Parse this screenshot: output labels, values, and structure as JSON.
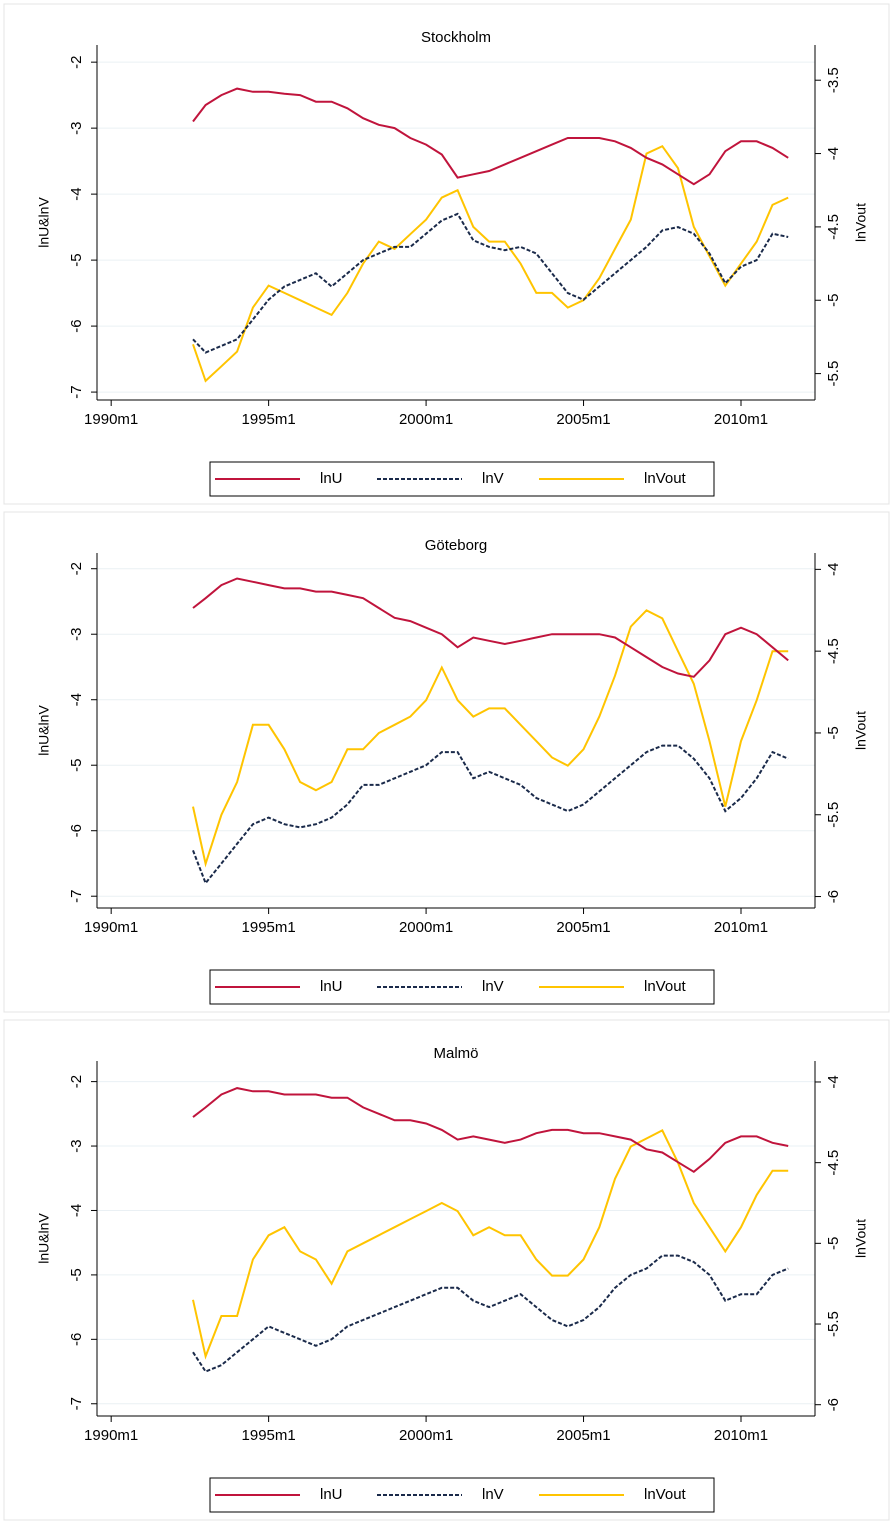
{
  "chart_data": [
    {
      "type": "line",
      "title": "Stockholm",
      "ylabel": "lnU&lnV",
      "y2label": "lnVout",
      "x": [
        1992.6,
        1993,
        1993.5,
        1994,
        1994.5,
        1995,
        1995.5,
        1996,
        1996.5,
        1997,
        1997.5,
        1998,
        1998.5,
        1999,
        1999.5,
        2000,
        2000.5,
        2001,
        2001.5,
        2002,
        2002.5,
        2003,
        2003.5,
        2004,
        2004.5,
        2005,
        2005.5,
        2006,
        2006.5,
        2007,
        2007.5,
        2008,
        2008.5,
        2009,
        2009.5,
        2010,
        2010.5,
        2011,
        2011.5
      ],
      "xlim": [
        1989.55,
        2012.35
      ],
      "xticks": [
        {
          "value": 1990,
          "label": "1990m1"
        },
        {
          "value": 1995,
          "label": "1995m1"
        },
        {
          "value": 2000,
          "label": "2000m1"
        },
        {
          "value": 2005,
          "label": "2005m1"
        },
        {
          "value": 2010,
          "label": "2010m1"
        }
      ],
      "ylim": [
        -7.12,
        -1.74
      ],
      "yticks": [
        -2,
        -3,
        -4,
        -5,
        -6,
        -7
      ],
      "y2lim": [
        -5.68,
        -3.26
      ],
      "y2ticks": [
        -3.5,
        -4,
        -4.5,
        -5,
        -5.5
      ],
      "grid": true,
      "series": [
        {
          "name": "lnU",
          "color": "#c0143c",
          "style": "solid",
          "values": [
            -2.9,
            -2.65,
            -2.5,
            -2.4,
            -2.45,
            -2.45,
            -2.48,
            -2.5,
            -2.6,
            -2.6,
            -2.7,
            -2.85,
            -2.95,
            -3.0,
            -3.15,
            -3.25,
            -3.4,
            -3.75,
            -3.7,
            -3.65,
            -3.55,
            -3.45,
            -3.35,
            -3.25,
            -3.15,
            -3.15,
            -3.15,
            -3.2,
            -3.3,
            -3.45,
            -3.55,
            -3.7,
            -3.85,
            -3.7,
            -3.35,
            -3.2,
            -3.2,
            -3.3,
            -3.45
          ]
        },
        {
          "name": "lnV",
          "color": "#1a2a4a",
          "style": "dashed",
          "values": [
            -6.2,
            -6.4,
            -6.3,
            -6.2,
            -5.9,
            -5.6,
            -5.4,
            -5.3,
            -5.2,
            -5.4,
            -5.2,
            -5.0,
            -4.9,
            -4.8,
            -4.8,
            -4.6,
            -4.4,
            -4.3,
            -4.7,
            -4.8,
            -4.85,
            -4.8,
            -4.9,
            -5.2,
            -5.5,
            -5.6,
            -5.4,
            -5.2,
            -5.0,
            -4.8,
            -4.55,
            -4.5,
            -4.6,
            -4.9,
            -5.35,
            -5.1,
            -5.0,
            -4.6,
            -4.65
          ]
        },
        {
          "name": "lnVout",
          "color": "#ffc400",
          "style": "solid",
          "axis": "y2",
          "values": [
            -5.3,
            -5.55,
            -5.45,
            -5.35,
            -5.05,
            -4.9,
            -4.95,
            -5.0,
            -5.05,
            -5.1,
            -4.95,
            -4.75,
            -4.6,
            -4.65,
            -4.55,
            -4.45,
            -4.3,
            -4.25,
            -4.5,
            -4.6,
            -4.6,
            -4.75,
            -4.95,
            -4.95,
            -5.05,
            -5.0,
            -4.85,
            -4.65,
            -4.45,
            -4.0,
            -3.95,
            -4.1,
            -4.5,
            -4.7,
            -4.9,
            -4.75,
            -4.6,
            -4.35,
            -4.3
          ]
        }
      ]
    },
    {
      "type": "line",
      "title": "Göteborg",
      "ylabel": "lnU&lnV",
      "y2label": "lnVout",
      "x": [
        1992.6,
        1993,
        1993.5,
        1994,
        1994.5,
        1995,
        1995.5,
        1996,
        1996.5,
        1997,
        1997.5,
        1998,
        1998.5,
        1999,
        1999.5,
        2000,
        2000.5,
        2001,
        2001.5,
        2002,
        2002.5,
        2003,
        2003.5,
        2004,
        2004.5,
        2005,
        2005.5,
        2006,
        2006.5,
        2007,
        2007.5,
        2008,
        2008.5,
        2009,
        2009.5,
        2010,
        2010.5,
        2011,
        2011.5
      ],
      "xlim": [
        1989.55,
        2012.35
      ],
      "xticks": [
        {
          "value": 1990,
          "label": "1990m1"
        },
        {
          "value": 1995,
          "label": "1995m1"
        },
        {
          "value": 2000,
          "label": "2000m1"
        },
        {
          "value": 2005,
          "label": "2005m1"
        },
        {
          "value": 2010,
          "label": "2010m1"
        }
      ],
      "ylim": [
        -7.18,
        -1.76
      ],
      "yticks": [
        -2,
        -3,
        -4,
        -5,
        -6,
        -7
      ],
      "y2lim": [
        -6.07,
        -3.9
      ],
      "y2ticks": [
        -4,
        -4.5,
        -5,
        -5.5,
        -6
      ],
      "grid": true,
      "series": [
        {
          "name": "lnU",
          "color": "#c0143c",
          "style": "solid",
          "values": [
            -2.6,
            -2.45,
            -2.25,
            -2.15,
            -2.2,
            -2.25,
            -2.3,
            -2.3,
            -2.35,
            -2.35,
            -2.4,
            -2.45,
            -2.6,
            -2.75,
            -2.8,
            -2.9,
            -3.0,
            -3.2,
            -3.05,
            -3.1,
            -3.15,
            -3.1,
            -3.05,
            -3.0,
            -3.0,
            -3.0,
            -3.0,
            -3.05,
            -3.2,
            -3.35,
            -3.5,
            -3.6,
            -3.65,
            -3.4,
            -3.0,
            -2.9,
            -3.0,
            -3.2,
            -3.4
          ]
        },
        {
          "name": "lnV",
          "color": "#1a2a4a",
          "style": "dashed",
          "values": [
            -6.3,
            -6.8,
            -6.5,
            -6.2,
            -5.9,
            -5.8,
            -5.9,
            -5.95,
            -5.9,
            -5.8,
            -5.6,
            -5.3,
            -5.3,
            -5.2,
            -5.1,
            -5.0,
            -4.8,
            -4.8,
            -5.2,
            -5.1,
            -5.2,
            -5.3,
            -5.5,
            -5.6,
            -5.7,
            -5.6,
            -5.4,
            -5.2,
            -5.0,
            -4.8,
            -4.7,
            -4.7,
            -4.9,
            -5.2,
            -5.7,
            -5.5,
            -5.2,
            -4.8,
            -4.9
          ]
        },
        {
          "name": "lnVout",
          "color": "#ffc400",
          "style": "solid",
          "axis": "y2",
          "values": [
            -5.45,
            -5.8,
            -5.5,
            -5.3,
            -4.95,
            -4.95,
            -5.1,
            -5.3,
            -5.35,
            -5.3,
            -5.1,
            -5.1,
            -5.0,
            -4.95,
            -4.9,
            -4.8,
            -4.6,
            -4.8,
            -4.9,
            -4.85,
            -4.85,
            -4.95,
            -5.05,
            -5.15,
            -5.2,
            -5.1,
            -4.9,
            -4.65,
            -4.35,
            -4.25,
            -4.3,
            -4.5,
            -4.7,
            -5.05,
            -5.45,
            -5.05,
            -4.8,
            -4.5,
            -4.5
          ]
        }
      ]
    },
    {
      "type": "line",
      "title": "Malmö",
      "ylabel": "lnU&lnV",
      "y2label": "lnVout",
      "x": [
        1992.6,
        1993,
        1993.5,
        1994,
        1994.5,
        1995,
        1995.5,
        1996,
        1996.5,
        1997,
        1997.5,
        1998,
        1998.5,
        1999,
        1999.5,
        2000,
        2000.5,
        2001,
        2001.5,
        2002,
        2002.5,
        2003,
        2003.5,
        2004,
        2004.5,
        2005,
        2005.5,
        2006,
        2006.5,
        2007,
        2007.5,
        2008,
        2008.5,
        2009,
        2009.5,
        2010,
        2010.5,
        2011,
        2011.5
      ],
      "xlim": [
        1989.55,
        2012.35
      ],
      "xticks": [
        {
          "value": 1990,
          "label": "1990m1"
        },
        {
          "value": 1995,
          "label": "1995m1"
        },
        {
          "value": 2000,
          "label": "2000m1"
        },
        {
          "value": 2005,
          "label": "2005m1"
        },
        {
          "value": 2010,
          "label": "2010m1"
        }
      ],
      "ylim": [
        -7.19,
        -1.68
      ],
      "yticks": [
        -2,
        -3,
        -4,
        -5,
        -6,
        -7
      ],
      "y2lim": [
        -6.07,
        -3.87
      ],
      "y2ticks": [
        -4,
        -4.5,
        -5,
        -5.5,
        -6
      ],
      "grid": true,
      "series": [
        {
          "name": "lnU",
          "color": "#c0143c",
          "style": "solid",
          "values": [
            -2.55,
            -2.4,
            -2.2,
            -2.1,
            -2.15,
            -2.15,
            -2.2,
            -2.2,
            -2.2,
            -2.25,
            -2.25,
            -2.4,
            -2.5,
            -2.6,
            -2.6,
            -2.65,
            -2.75,
            -2.9,
            -2.85,
            -2.9,
            -2.95,
            -2.9,
            -2.8,
            -2.75,
            -2.75,
            -2.8,
            -2.8,
            -2.85,
            -2.9,
            -3.05,
            -3.1,
            -3.25,
            -3.4,
            -3.2,
            -2.95,
            -2.85,
            -2.85,
            -2.95,
            -3.0
          ]
        },
        {
          "name": "lnV",
          "color": "#1a2a4a",
          "style": "dashed",
          "values": [
            -6.2,
            -6.5,
            -6.4,
            -6.2,
            -6.0,
            -5.8,
            -5.9,
            -6.0,
            -6.1,
            -6.0,
            -5.8,
            -5.7,
            -5.6,
            -5.5,
            -5.4,
            -5.3,
            -5.2,
            -5.2,
            -5.4,
            -5.5,
            -5.4,
            -5.3,
            -5.5,
            -5.7,
            -5.8,
            -5.7,
            -5.5,
            -5.2,
            -5.0,
            -4.9,
            -4.7,
            -4.7,
            -4.8,
            -5.0,
            -5.4,
            -5.3,
            -5.3,
            -5.0,
            -4.9
          ]
        },
        {
          "name": "lnVout",
          "color": "#ffc400",
          "style": "solid",
          "axis": "y2",
          "values": [
            -5.35,
            -5.7,
            -5.45,
            -5.45,
            -5.1,
            -4.95,
            -4.9,
            -5.05,
            -5.1,
            -5.25,
            -5.05,
            -5.0,
            -4.95,
            -4.9,
            -4.85,
            -4.8,
            -4.75,
            -4.8,
            -4.95,
            -4.9,
            -4.95,
            -4.95,
            -5.1,
            -5.2,
            -5.2,
            -5.1,
            -4.9,
            -4.6,
            -4.4,
            -4.35,
            -4.3,
            -4.5,
            -4.75,
            -4.9,
            -5.05,
            -4.9,
            -4.7,
            -4.55,
            -4.55
          ]
        }
      ]
    }
  ]
}
